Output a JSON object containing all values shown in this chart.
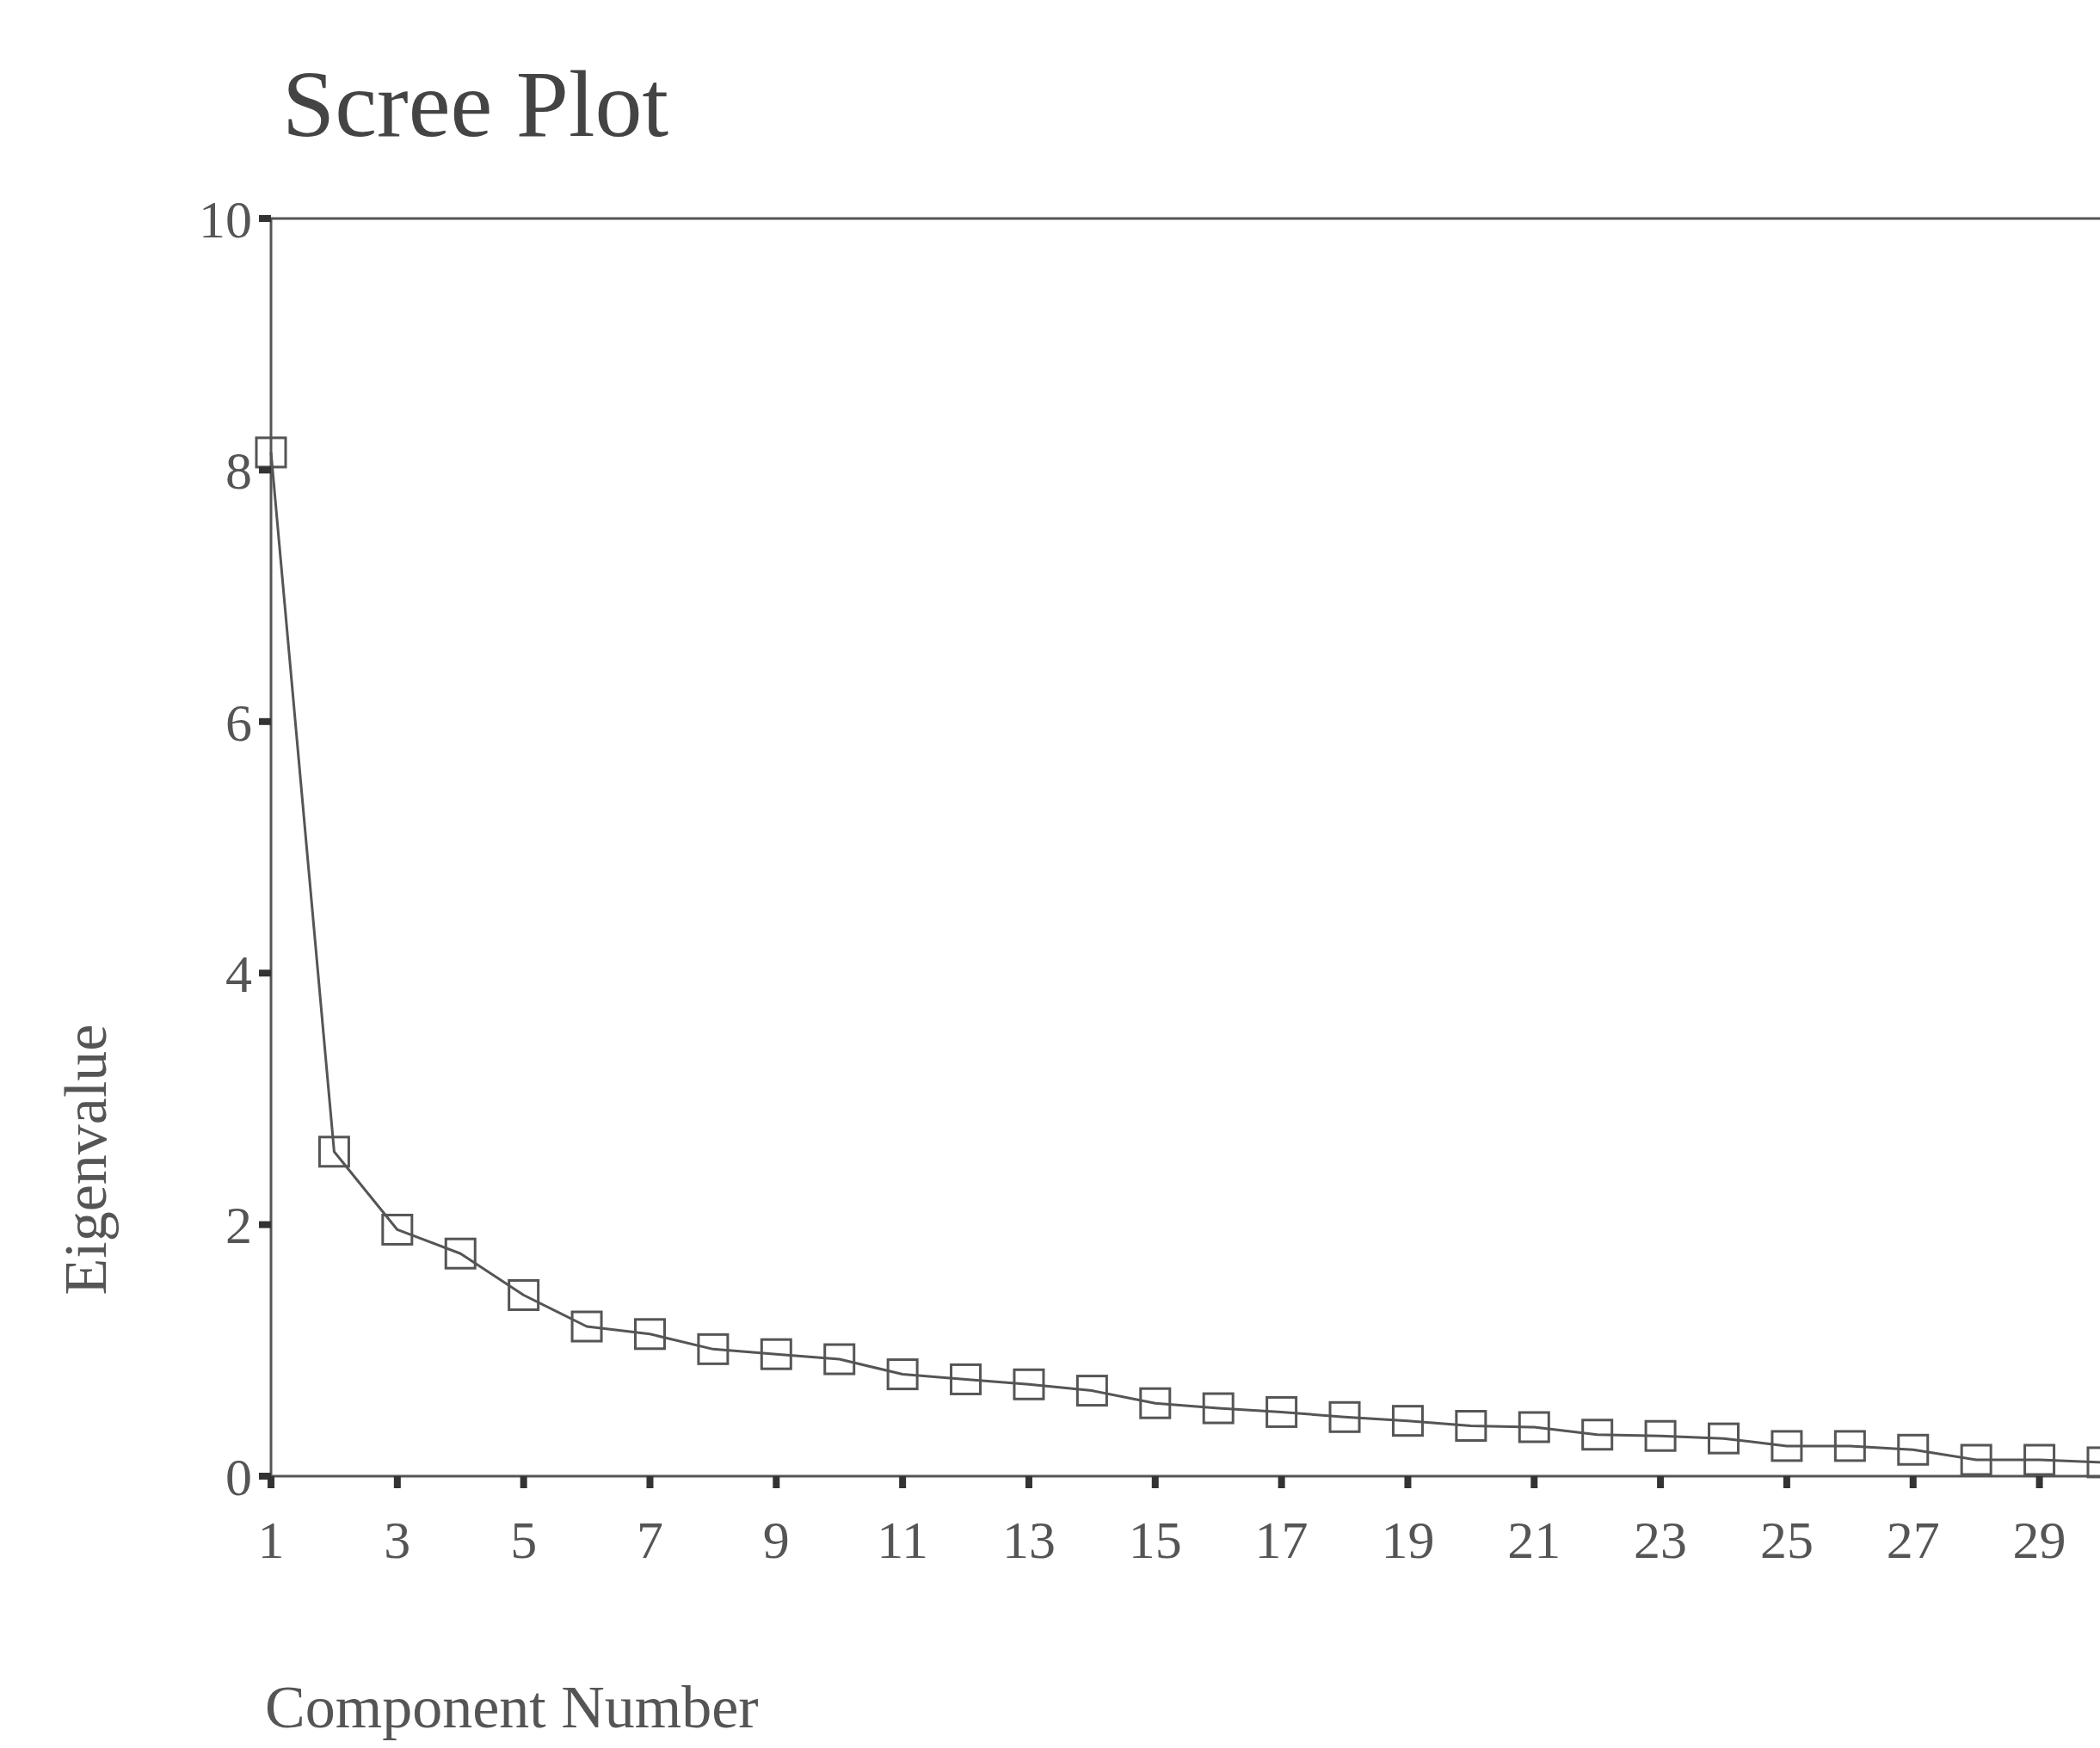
{
  "chart_data": {
    "type": "line",
    "title": "Scree Plot",
    "xlabel": "Component Number",
    "ylabel": "Eigenvalue",
    "x": [
      1,
      2,
      3,
      4,
      5,
      6,
      7,
      8,
      9,
      10,
      11,
      12,
      13,
      14,
      15,
      16,
      17,
      18,
      19,
      20,
      21,
      22,
      23,
      24,
      25,
      26,
      27,
      28,
      29,
      30
    ],
    "series": [
      {
        "color": "#555555",
        "values": [
          8.14,
          2.58,
          1.96,
          1.77,
          1.44,
          1.19,
          1.13,
          1.01,
          0.97,
          0.93,
          0.81,
          0.77,
          0.73,
          0.68,
          0.58,
          0.54,
          0.51,
          0.47,
          0.44,
          0.4,
          0.39,
          0.33,
          0.32,
          0.3,
          0.24,
          0.24,
          0.21,
          0.13,
          0.13,
          0.11
        ]
      }
    ],
    "xlim": [
      1,
      30
    ],
    "ylim": [
      0,
      10
    ],
    "xticks": [
      1,
      3,
      5,
      7,
      9,
      11,
      13,
      15,
      17,
      19,
      21,
      23,
      25,
      27,
      29
    ],
    "yticks": [
      0,
      2,
      4,
      6,
      8,
      10
    ],
    "grid": false,
    "marker": "square",
    "line_style": "solid"
  }
}
